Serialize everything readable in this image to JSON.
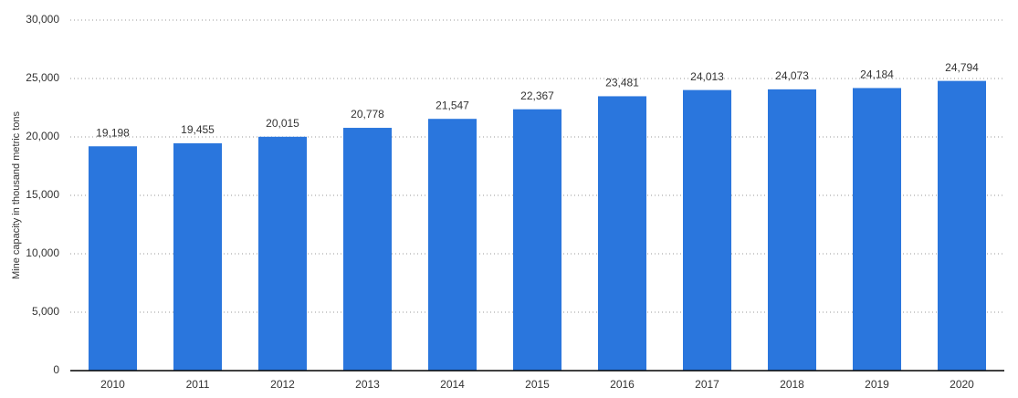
{
  "chart_data": {
    "type": "bar",
    "y_label": "Mine capacity in thousand metric tons",
    "categories": [
      "2010",
      "2011",
      "2012",
      "2013",
      "2014",
      "2015",
      "2016",
      "2017",
      "2018",
      "2019",
      "2020"
    ],
    "values": [
      19198,
      19455,
      20015,
      20778,
      21547,
      22367,
      23481,
      24013,
      24073,
      24184,
      24794
    ],
    "value_labels": [
      "19,198",
      "19,455",
      "20,015",
      "20,778",
      "21,547",
      "22,367",
      "23,481",
      "24,013",
      "24,073",
      "24,184",
      "24,794"
    ],
    "color": "#2a76dd",
    "ylim": [
      0,
      30000
    ],
    "yticks": [
      0,
      {
        "value": 5000,
        "label": "5,000"
      },
      {
        "value": 10000,
        "label": "10,000"
      },
      {
        "value": 15000,
        "label": "15,000"
      },
      {
        "value": 20000,
        "label": "20,000"
      },
      {
        "value": 25000,
        "label": "25,000"
      },
      {
        "value": 30000,
        "label": "30,000"
      }
    ],
    "grid": true
  }
}
